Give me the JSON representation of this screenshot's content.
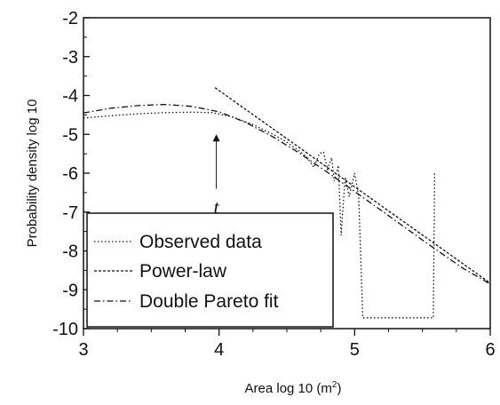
{
  "chart_data": {
    "type": "line",
    "title": "",
    "xlabel": "Area log 10 (m",
    "xlabel_sup": "2",
    "xlabel_close": ")",
    "ylabel": "Probability density log 10",
    "xlim": [
      3,
      6
    ],
    "ylim": [
      -10,
      -2
    ],
    "x_ticks": [
      3,
      4,
      5,
      6
    ],
    "x_tick_labels": [
      "3",
      "4",
      "5",
      "6"
    ],
    "y_ticks": [
      -2,
      -3,
      -4,
      -5,
      -6,
      -7,
      -8,
      -9,
      -10
    ],
    "y_tick_labels": [
      "-2",
      "-3",
      "-4",
      "-5",
      "-6",
      "-7",
      "-8",
      "-9",
      "-10"
    ],
    "grid": false,
    "legend_position": "bottom-left",
    "series": [
      {
        "name": "Observed data",
        "style": "dotted",
        "points": [
          [
            3.0,
            -4.58
          ],
          [
            3.2,
            -4.52
          ],
          [
            3.4,
            -4.47
          ],
          [
            3.6,
            -4.44
          ],
          [
            3.8,
            -4.43
          ],
          [
            3.95,
            -4.44
          ],
          [
            4.1,
            -4.55
          ],
          [
            4.25,
            -4.75
          ],
          [
            4.4,
            -5.0
          ],
          [
            4.5,
            -5.2
          ],
          [
            4.6,
            -5.45
          ],
          [
            4.65,
            -5.6
          ],
          [
            4.7,
            -5.85
          ],
          [
            4.74,
            -5.5
          ],
          [
            4.77,
            -5.45
          ],
          [
            4.8,
            -5.9
          ],
          [
            4.83,
            -5.6
          ],
          [
            4.85,
            -6.2
          ],
          [
            4.88,
            -5.8
          ],
          [
            4.9,
            -7.6
          ],
          [
            4.93,
            -6.1
          ],
          [
            4.96,
            -6.6
          ],
          [
            5.0,
            -6.0
          ],
          [
            5.03,
            -6.6
          ],
          [
            5.06,
            -9.72
          ],
          [
            5.58,
            -9.72
          ],
          [
            5.59,
            -6.0
          ]
        ]
      },
      {
        "name": "Power-law",
        "style": "dashed",
        "points": [
          [
            3.97,
            -3.8
          ],
          [
            6.0,
            -8.83
          ]
        ]
      },
      {
        "name": "Double Pareto fit",
        "style": "dashdot",
        "points": [
          [
            3.0,
            -4.45
          ],
          [
            3.2,
            -4.33
          ],
          [
            3.4,
            -4.26
          ],
          [
            3.6,
            -4.23
          ],
          [
            3.8,
            -4.28
          ],
          [
            4.0,
            -4.42
          ],
          [
            4.2,
            -4.7
          ],
          [
            4.4,
            -5.07
          ],
          [
            4.6,
            -5.5
          ],
          [
            4.8,
            -5.98
          ],
          [
            5.0,
            -6.47
          ],
          [
            5.2,
            -6.97
          ],
          [
            5.5,
            -7.72
          ],
          [
            5.8,
            -8.45
          ],
          [
            6.0,
            -8.85
          ]
        ]
      }
    ],
    "annotations": [
      {
        "text": "t",
        "arrow_from": [
          3.98,
          -6.4
        ],
        "arrow_to": [
          3.98,
          -5.0
        ]
      }
    ]
  }
}
